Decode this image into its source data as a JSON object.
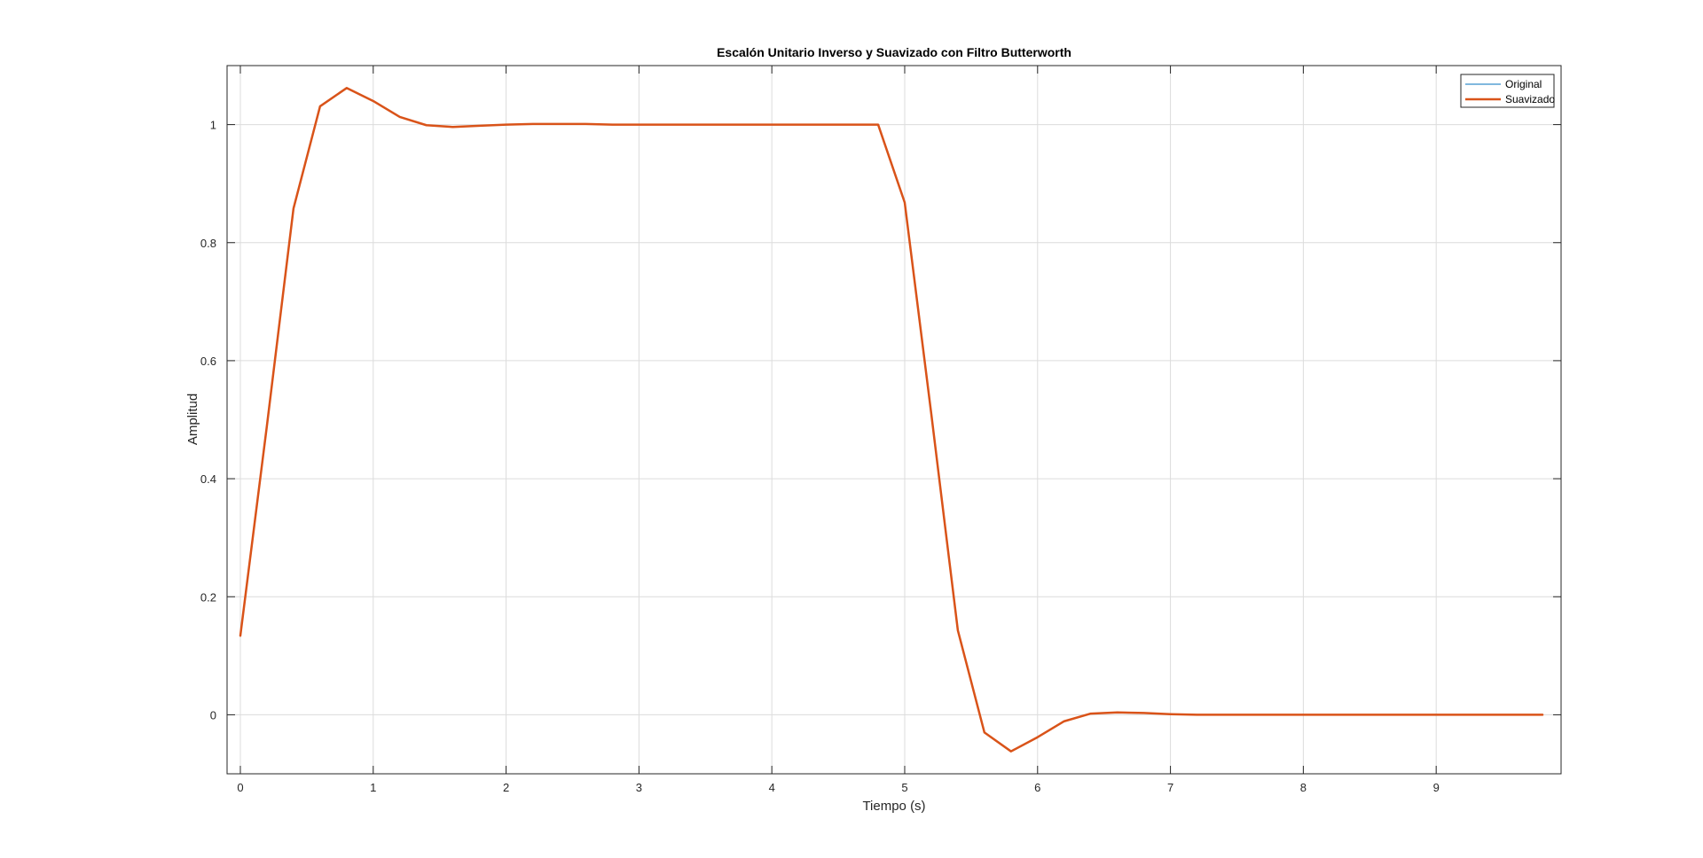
{
  "chart_data": {
    "type": "line",
    "title": "Escalón Unitario Inverso y Suavizado con Filtro Butterworth",
    "xlabel": "Tiempo (s)",
    "ylabel": "Amplitud",
    "xlim": [
      -0.1,
      9.94
    ],
    "ylim": [
      -0.1,
      1.1
    ],
    "x_ticks": [
      0,
      1,
      2,
      3,
      4,
      5,
      6,
      7,
      8,
      9
    ],
    "y_ticks": [
      0,
      0.2,
      0.4,
      0.6,
      0.8,
      1
    ],
    "grid": true,
    "legend_position": "top-right",
    "x": [
      0,
      0.2,
      0.4,
      0.6,
      0.8,
      1.0,
      1.2,
      1.4,
      1.6,
      1.8,
      2.0,
      2.2,
      2.4,
      2.6,
      2.8,
      3.0,
      3.2,
      3.4,
      3.6,
      3.8,
      4.0,
      4.2,
      4.4,
      4.6,
      4.8,
      5.0,
      5.2,
      5.4,
      5.6,
      5.8,
      6.0,
      6.2,
      6.4,
      6.6,
      6.8,
      7.0,
      7.2,
      7.4,
      7.6,
      7.8,
      8.0,
      8.2,
      8.4,
      8.6,
      8.8,
      9.0,
      9.2,
      9.4,
      9.6,
      9.8
    ],
    "series": [
      {
        "name": "Original",
        "color": "#0072BD",
        "line_width": 1,
        "values": [
          0.134,
          0.49,
          0.858,
          1.031,
          1.062,
          1.04,
          1.013,
          0.999,
          0.996,
          0.998,
          1.0,
          1.001,
          1.001,
          1.001,
          1.0,
          1.0,
          1.0,
          1.0,
          1.0,
          1.0,
          1.0,
          1.0,
          1.0,
          1.0,
          1.0,
          0.868,
          0.51,
          0.143,
          -0.03,
          -0.062,
          -0.038,
          -0.011,
          0.002,
          0.004,
          0.003,
          0.001,
          0.0,
          0.0,
          0.0,
          0.0,
          0.0,
          0.0,
          0.0,
          0.0,
          0.0,
          0.0,
          0.0,
          0.0,
          0.0,
          0.0
        ]
      },
      {
        "name": "Suavizado",
        "color": "#D95319",
        "line_width": 2.5,
        "values": [
          0.134,
          0.49,
          0.858,
          1.031,
          1.062,
          1.04,
          1.013,
          0.999,
          0.996,
          0.998,
          1.0,
          1.001,
          1.001,
          1.001,
          1.0,
          1.0,
          1.0,
          1.0,
          1.0,
          1.0,
          1.0,
          1.0,
          1.0,
          1.0,
          1.0,
          0.868,
          0.51,
          0.143,
          -0.03,
          -0.062,
          -0.038,
          -0.011,
          0.002,
          0.004,
          0.003,
          0.001,
          0.0,
          0.0,
          0.0,
          0.0,
          0.0,
          0.0,
          0.0,
          0.0,
          0.0,
          0.0,
          0.0,
          0.0,
          0.0,
          0.0
        ]
      }
    ]
  }
}
